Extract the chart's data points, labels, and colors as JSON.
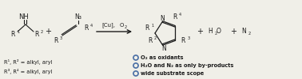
{
  "bg_color": "#f0efe8",
  "text_color": "#1a1a1a",
  "blue_color": "#4a6fa5",
  "fig_width": 3.78,
  "fig_height": 1.0,
  "dpi": 100,
  "bullet_lines": [
    "O₂ as oxidants",
    "H₂O and N₂ as only by-products",
    "wide substrate scope"
  ]
}
